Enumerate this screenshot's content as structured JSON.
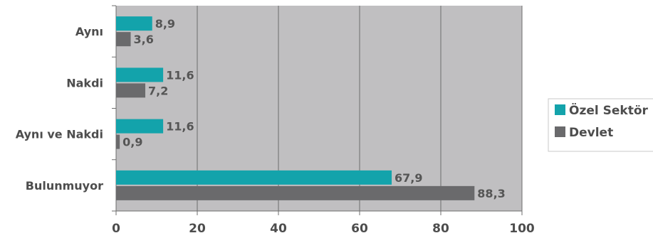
{
  "chart_data": {
    "type": "bar",
    "orientation": "horizontal",
    "categories": [
      "Aynı",
      "Nakdi",
      "Aynı ve Nakdi",
      "Bulunmuyor"
    ],
    "series": [
      {
        "name": "Özel Sektör",
        "color": "#13a3ab",
        "values": [
          8.9,
          11.6,
          11.6,
          67.9
        ],
        "labels": [
          "8,9",
          "11,6",
          "11,6",
          "67,9"
        ]
      },
      {
        "name": "Devlet",
        "color": "#6a6a6c",
        "values": [
          3.6,
          7.2,
          0.9,
          88.3
        ],
        "labels": [
          "3,6",
          "7,2",
          "0,9",
          "88,3"
        ]
      }
    ],
    "x_ticks": [
      "0",
      "20",
      "40",
      "60",
      "80",
      "100"
    ],
    "xlim": [
      0,
      100
    ],
    "grid": true,
    "plot_background": "#c0bfc1",
    "gridline_color": "#6d6d6d",
    "legend_position": "right"
  }
}
